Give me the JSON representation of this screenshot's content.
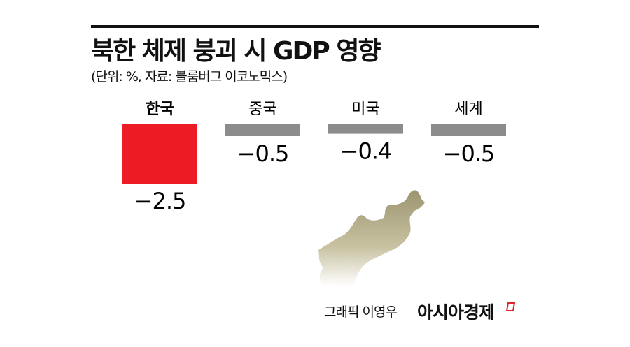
{
  "title": "북한 체제 붕괴 시 GDP 영향",
  "subtitle": "(단위: %, 자료: 블룸버그 이코노믹스)",
  "credit": "그래픽 이영우",
  "brand": "아시아경제",
  "chart_data": {
    "type": "bar",
    "title": "북한 체제 붕괴 시 GDP 영향",
    "categories": [
      "한국",
      "중국",
      "미국",
      "세계"
    ],
    "values": [
      -2.5,
      -0.5,
      -0.4,
      -0.5
    ],
    "value_labels": [
      "−2.5",
      "−0.5",
      "−0.4",
      "−0.5"
    ],
    "colors": [
      "#ed1c24",
      "#8c8c8c",
      "#8c8c8c",
      "#8c8c8c"
    ],
    "highlight_category": "한국",
    "grid": false
  }
}
